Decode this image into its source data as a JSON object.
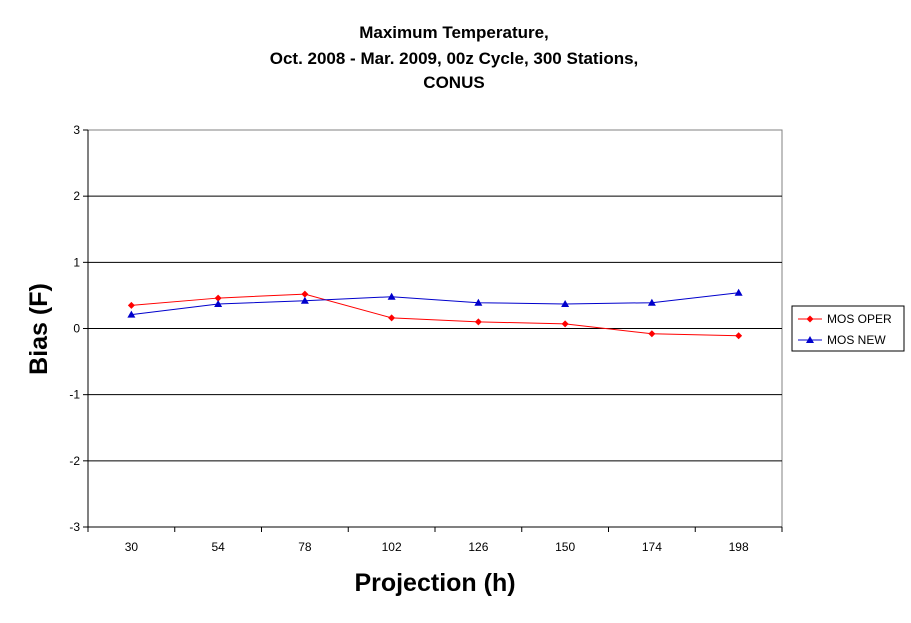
{
  "chart_data": {
    "type": "line",
    "title": [
      "Maximum Temperature,",
      "Oct. 2008 - Mar. 2009, 00z Cycle, 300 Stations,",
      "CONUS"
    ],
    "xlabel": "Projection (h)",
    "ylabel": "Bias (F)",
    "categories": [
      "30",
      "54",
      "78",
      "102",
      "126",
      "150",
      "174",
      "198"
    ],
    "ylim": [
      -3,
      3
    ],
    "yticks": [
      "3",
      "2",
      "1",
      "0",
      "-1",
      "-2",
      "-3"
    ],
    "grid": "horizontal",
    "legend_position": "right",
    "series": [
      {
        "name": "MOS OPER",
        "color": "#ff0000",
        "marker": "diamond",
        "values": [
          0.35,
          0.46,
          0.52,
          0.16,
          0.1,
          0.07,
          -0.08,
          -0.11
        ]
      },
      {
        "name": "MOS NEW",
        "color": "#0000cc",
        "marker": "triangle",
        "values": [
          0.21,
          0.37,
          0.42,
          0.48,
          0.39,
          0.37,
          0.39,
          0.54
        ]
      }
    ]
  }
}
